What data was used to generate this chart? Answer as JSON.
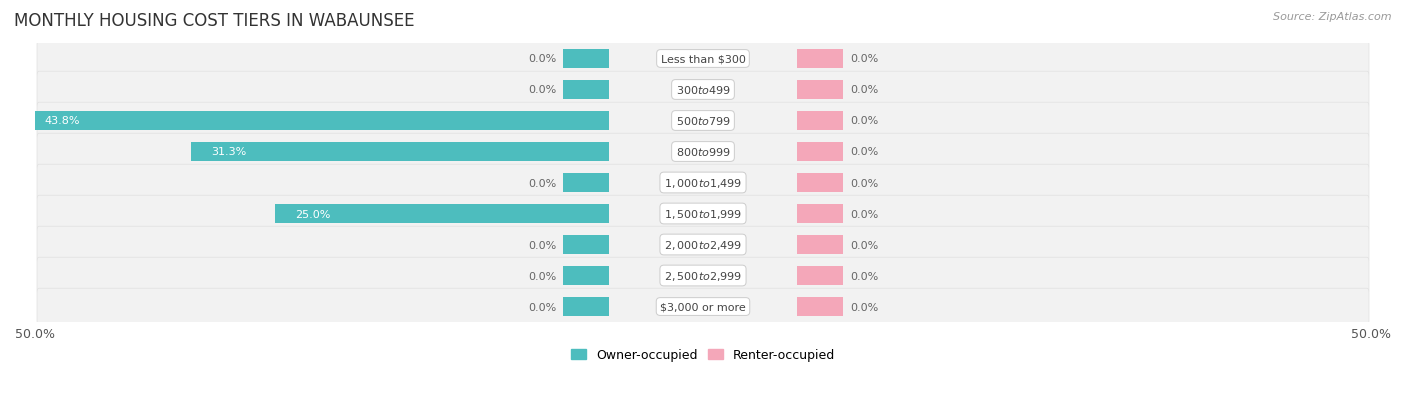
{
  "title": "MONTHLY HOUSING COST TIERS IN WABAUNSEE",
  "source": "Source: ZipAtlas.com",
  "categories": [
    "Less than $300",
    "$300 to $499",
    "$500 to $799",
    "$800 to $999",
    "$1,000 to $1,499",
    "$1,500 to $1,999",
    "$2,000 to $2,499",
    "$2,500 to $2,999",
    "$3,000 or more"
  ],
  "owner_values": [
    0.0,
    0.0,
    43.8,
    31.3,
    0.0,
    25.0,
    0.0,
    0.0,
    0.0
  ],
  "renter_values": [
    0.0,
    0.0,
    0.0,
    0.0,
    0.0,
    0.0,
    0.0,
    0.0,
    0.0
  ],
  "owner_color": "#4dbdbe",
  "renter_color": "#f4a7b9",
  "axis_max": 50.0,
  "background_color": "#ffffff",
  "row_bg_color": "#f2f2f2",
  "title_fontsize": 12,
  "source_fontsize": 8,
  "tick_fontsize": 9,
  "label_fontsize": 8,
  "category_fontsize": 8,
  "legend_fontsize": 9,
  "stub_size": 3.5
}
